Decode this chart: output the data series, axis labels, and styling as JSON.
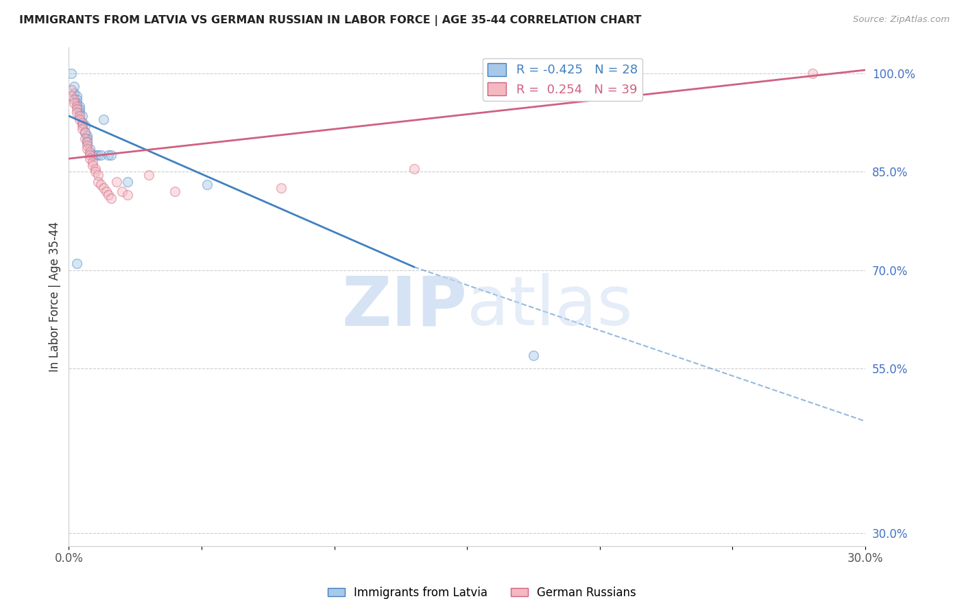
{
  "title": "IMMIGRANTS FROM LATVIA VS GERMAN RUSSIAN IN LABOR FORCE | AGE 35-44 CORRELATION CHART",
  "source": "Source: ZipAtlas.com",
  "ylabel": "In Labor Force | Age 35-44",
  "R_latvia": -0.425,
  "N_latvia": 28,
  "R_german": 0.254,
  "N_german": 39,
  "blue_color": "#a8c8e8",
  "pink_color": "#f4b8c0",
  "blue_line_color": "#4080c0",
  "pink_line_color": "#d06080",
  "right_axis_color": "#4472c4",
  "xlim": [
    0.0,
    0.3
  ],
  "ylim": [
    0.28,
    1.04
  ],
  "right_yticks": [
    1.0,
    0.85,
    0.7,
    0.55,
    0.3
  ],
  "right_yticklabels": [
    "100.0%",
    "85.0%",
    "70.0%",
    "55.0%",
    "30.0%"
  ],
  "xticks": [
    0.0,
    0.05,
    0.1,
    0.15,
    0.2,
    0.25,
    0.3
  ],
  "xticklabels": [
    "0.0%",
    "",
    "",
    "",
    "",
    "",
    "30.0%"
  ],
  "background_color": "#ffffff",
  "watermark_color": "#c5d8f0",
  "legend1_label": "Immigrants from Latvia",
  "legend2_label": "German Russians",
  "latvia_x": [
    0.001,
    0.002,
    0.002,
    0.003,
    0.003,
    0.003,
    0.004,
    0.004,
    0.004,
    0.005,
    0.005,
    0.006,
    0.006,
    0.007,
    0.007,
    0.007,
    0.008,
    0.009,
    0.01,
    0.011,
    0.012,
    0.013,
    0.015,
    0.016,
    0.022,
    0.052,
    0.175,
    0.003
  ],
  "latvia_y": [
    1.0,
    0.98,
    0.97,
    0.965,
    0.96,
    0.955,
    0.95,
    0.945,
    0.94,
    0.935,
    0.925,
    0.92,
    0.91,
    0.905,
    0.9,
    0.895,
    0.885,
    0.875,
    0.875,
    0.875,
    0.875,
    0.93,
    0.875,
    0.875,
    0.835,
    0.83,
    0.57,
    0.71
  ],
  "german_x": [
    0.001,
    0.001,
    0.002,
    0.002,
    0.003,
    0.003,
    0.003,
    0.004,
    0.004,
    0.005,
    0.005,
    0.005,
    0.006,
    0.006,
    0.007,
    0.007,
    0.007,
    0.008,
    0.008,
    0.008,
    0.009,
    0.009,
    0.01,
    0.01,
    0.011,
    0.011,
    0.012,
    0.013,
    0.014,
    0.015,
    0.016,
    0.018,
    0.02,
    0.022,
    0.03,
    0.04,
    0.08,
    0.13,
    0.28
  ],
  "german_y": [
    0.975,
    0.965,
    0.96,
    0.955,
    0.95,
    0.945,
    0.94,
    0.935,
    0.93,
    0.925,
    0.92,
    0.915,
    0.91,
    0.9,
    0.895,
    0.89,
    0.885,
    0.88,
    0.875,
    0.87,
    0.865,
    0.86,
    0.855,
    0.85,
    0.845,
    0.835,
    0.83,
    0.825,
    0.82,
    0.815,
    0.81,
    0.835,
    0.82,
    0.815,
    0.845,
    0.82,
    0.825,
    0.855,
    1.0
  ],
  "blue_trend": [
    0.0,
    0.935,
    0.13,
    0.705
  ],
  "blue_dash": [
    0.13,
    0.705,
    0.3,
    0.47
  ],
  "pink_trend": [
    0.0,
    0.87,
    0.3,
    1.005
  ],
  "dot_size": 100,
  "dot_alpha": 0.45,
  "dot_linewidth": 1.0
}
